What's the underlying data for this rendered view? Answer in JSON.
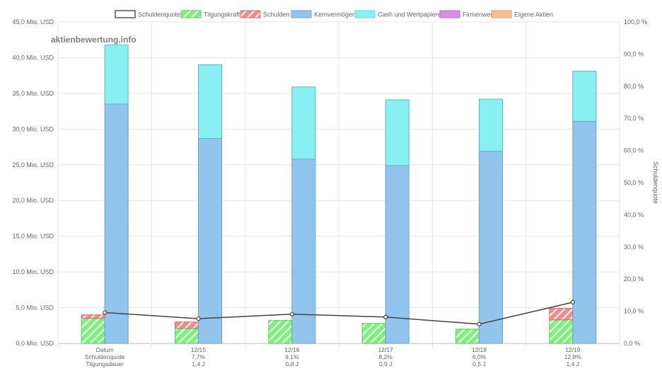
{
  "chart_data": {
    "type": "bar",
    "stacked": true,
    "watermark": "aktienbewertung.info",
    "legend": {
      "placement": "top",
      "items": [
        {
          "label": "Schuldenquote",
          "color": "#ffffff",
          "border": "#555555",
          "pattern": "none"
        },
        {
          "label": "Tilgungskraft",
          "color": "#7cf27c",
          "border": "#55cc55",
          "pattern": "hatch"
        },
        {
          "label": "Schulden",
          "color": "#f08c8c",
          "border": "#e06666",
          "pattern": "hatch"
        },
        {
          "label": "Kernvermögen",
          "color": "#92c5ed",
          "border": "#6fa8dc",
          "pattern": "none"
        },
        {
          "label": "Cash und Wertpapiere",
          "color": "#88f0f2",
          "border": "#5fd8da",
          "pattern": "none"
        },
        {
          "label": "Firmenwert",
          "color": "#d98ee8",
          "border": "#b86ccc",
          "pattern": "none"
        },
        {
          "label": "Eigene Aktien",
          "color": "#f5c093",
          "border": "#e0a070",
          "pattern": "none"
        }
      ]
    },
    "categories": [
      "12/15",
      "12/16",
      "12/17",
      "12/18",
      "12/19"
    ],
    "row_header": [
      "Datum",
      "Schuldenquote",
      "Tilgungsdauer"
    ],
    "schuldenquote_labels": [
      "7,7%",
      "9,1%",
      "8,2%",
      "6,0%",
      "12,8%"
    ],
    "tilgungsdauer_labels": [
      "1,4 J",
      "0,8 J",
      "0,9 J",
      "0,5 J",
      "1,4 J"
    ],
    "left_axis": {
      "min": 0,
      "max": 45,
      "step": 5,
      "tick_labels": [
        "0,0 Mio. USD",
        "5,0 Mio. USD",
        "10,0 Mio. USD",
        "15,0 Mio. USD",
        "20,0 Mio. USD",
        "25,0 Mio. USD",
        "30,0 Mio. USD",
        "35,0 Mio. USD",
        "40,0 Mio. USD",
        "45,0 Mio. USD"
      ]
    },
    "right_axis": {
      "min": 0,
      "max": 100,
      "step": 10,
      "label": "Schuldenquote",
      "tick_labels": [
        "0,0 %",
        "10,0 %",
        "20,0 %",
        "30,0 %",
        "40,0 %",
        "50,0 %",
        "60,0 %",
        "70,0 %",
        "80,0 %",
        "90,0 %",
        "100,0 %"
      ]
    },
    "schuldenquote_line": {
      "name": "Schuldenquote",
      "values": [
        9.6,
        7.7,
        9.1,
        8.2,
        6.0,
        12.8
      ],
      "x_positions": [
        "Datum",
        "12/15",
        "12/16",
        "12/17",
        "12/18",
        "12/19"
      ]
    },
    "debt_stack": {
      "categories": [
        "Datum",
        "12/15",
        "12/16",
        "12/17",
        "12/18",
        "12/19"
      ],
      "series": [
        {
          "name": "Tilgungskraft",
          "values": [
            3.5,
            2.1,
            3.2,
            2.8,
            2.0,
            3.3
          ]
        },
        {
          "name": "Schulden",
          "values": [
            0.5,
            0.9,
            0,
            0,
            0,
            1.6
          ]
        }
      ]
    },
    "asset_stack": {
      "categories": [
        "Datum",
        "12/15",
        "12/16",
        "12/17",
        "12/18",
        "12/19"
      ],
      "series": [
        {
          "name": "Kernvermögen",
          "values": [
            33.5,
            28.7,
            25.8,
            24.9,
            26.9,
            31.1
          ]
        },
        {
          "name": "Cash und Wertpapiere",
          "values": [
            8.3,
            10.3,
            10.1,
            9.2,
            7.3,
            7.0
          ]
        }
      ]
    },
    "grid": true
  }
}
